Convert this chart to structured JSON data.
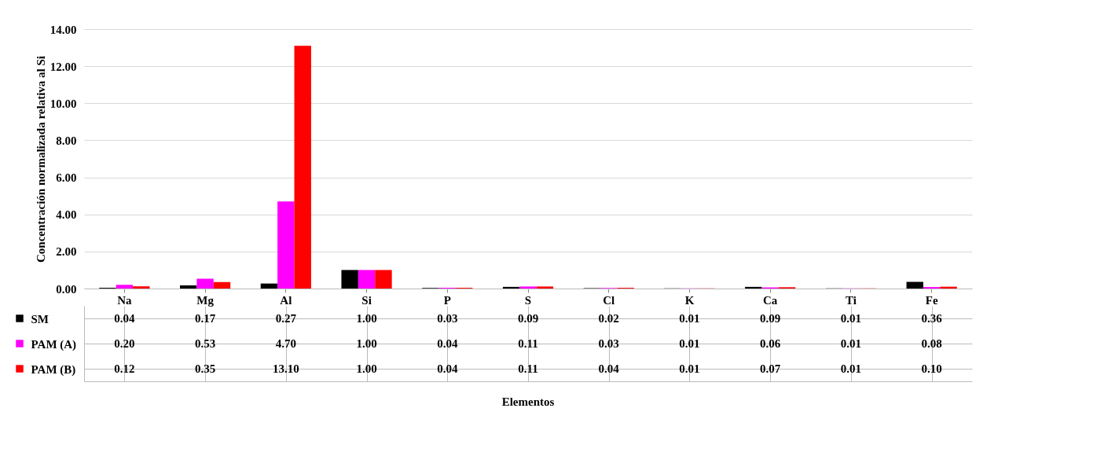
{
  "chart_data": {
    "type": "bar",
    "ylabel": "Concentración normalizada relativa al Si",
    "annotations": [
      "Elementos"
    ],
    "categories": [
      "Na",
      "Mg",
      "Al",
      "Si",
      "P",
      "S",
      "Cl",
      "K",
      "Ca",
      "Ti",
      "Fe"
    ],
    "series": [
      {
        "name": "SM",
        "color": "#000000",
        "values": [
          0.04,
          0.17,
          0.27,
          1.0,
          0.03,
          0.09,
          0.02,
          0.01,
          0.09,
          0.01,
          0.36
        ],
        "value_labels": [
          "0.04",
          "0.17",
          "0.27",
          "1.00",
          "0.03",
          "0.09",
          "0.02",
          "0.01",
          "0.09",
          "0.01",
          "0.36"
        ]
      },
      {
        "name": "PAM (A)",
        "color": "#ff00ff",
        "values": [
          0.2,
          0.53,
          4.7,
          1.0,
          0.04,
          0.11,
          0.03,
          0.01,
          0.06,
          0.01,
          0.08
        ],
        "value_labels": [
          "0.20",
          "0.53",
          "4.70",
          "1.00",
          "0.04",
          "0.11",
          "0.03",
          "0.01",
          "0.06",
          "0.01",
          "0.08"
        ]
      },
      {
        "name": "PAM (B)",
        "color": "#ff0000",
        "values": [
          0.12,
          0.35,
          13.1,
          1.0,
          0.04,
          0.11,
          0.04,
          0.01,
          0.07,
          0.01,
          0.1
        ],
        "value_labels": [
          "0.12",
          "0.35",
          "13.10",
          "1.00",
          "0.04",
          "0.11",
          "0.04",
          "0.01",
          "0.07",
          "0.01",
          "0.10"
        ]
      }
    ],
    "ylim": [
      0,
      14
    ],
    "yticks": [
      {
        "value": 0,
        "label": "0.00"
      },
      {
        "value": 2,
        "label": "2.00"
      },
      {
        "value": 4,
        "label": "4.00"
      },
      {
        "value": 6,
        "label": "6.00"
      },
      {
        "value": 8,
        "label": "8.00"
      },
      {
        "value": 10,
        "label": "10.00"
      },
      {
        "value": 12,
        "label": "12.00"
      },
      {
        "value": 14,
        "label": "14.00"
      }
    ],
    "grid": "y",
    "legend": "bottom left"
  }
}
